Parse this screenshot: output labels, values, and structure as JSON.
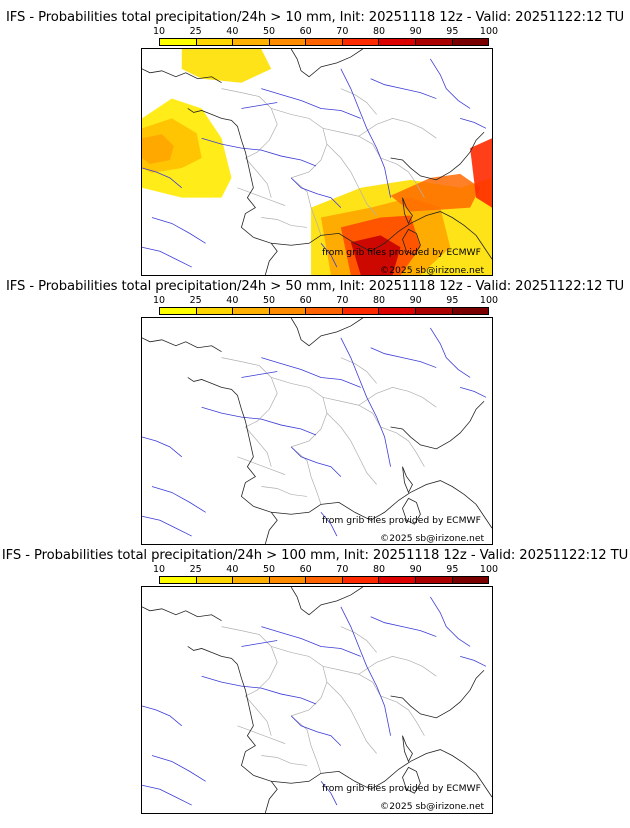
{
  "panels": [
    {
      "title": "IFS - Probabilities total precipitation/24h > 10 mm, Init: 20251118 12z - Valid: 20251122:12 TU",
      "credit_source": "from grib files provided by ECMWF",
      "credit_copyright": "©2025 sb@irizone.net",
      "has_precip_field": true
    },
    {
      "title": "IFS - Probabilities total precipitation/24h > 50 mm, Init: 20251118 12z - Valid: 20251122:12 TU",
      "credit_source": "from grib files provided by ECMWF",
      "credit_copyright": "©2025 sb@irizone.net",
      "has_precip_field": false
    },
    {
      "title": "IFS - Probabilities total precipitation/24h > 100 mm, Init: 20251118 12z - Valid: 20251122:12 TU",
      "credit_source": "from grib files provided by ECMWF",
      "credit_copyright": "©2025 sb@irizone.net",
      "has_precip_field": false
    }
  ],
  "color_scale": {
    "ticks": [
      "10",
      "25",
      "40",
      "50",
      "60",
      "70",
      "80",
      "90",
      "95",
      "100"
    ],
    "colors": [
      "#ffff00",
      "#ffd700",
      "#ffb000",
      "#ff8c00",
      "#ff6400",
      "#ff2a00",
      "#dd0000",
      "#aa0000",
      "#7a0000"
    ]
  },
  "map_colors": {
    "coast": "#222222",
    "rivers": "#3b3bd8",
    "regions": "#b0b0b0"
  }
}
